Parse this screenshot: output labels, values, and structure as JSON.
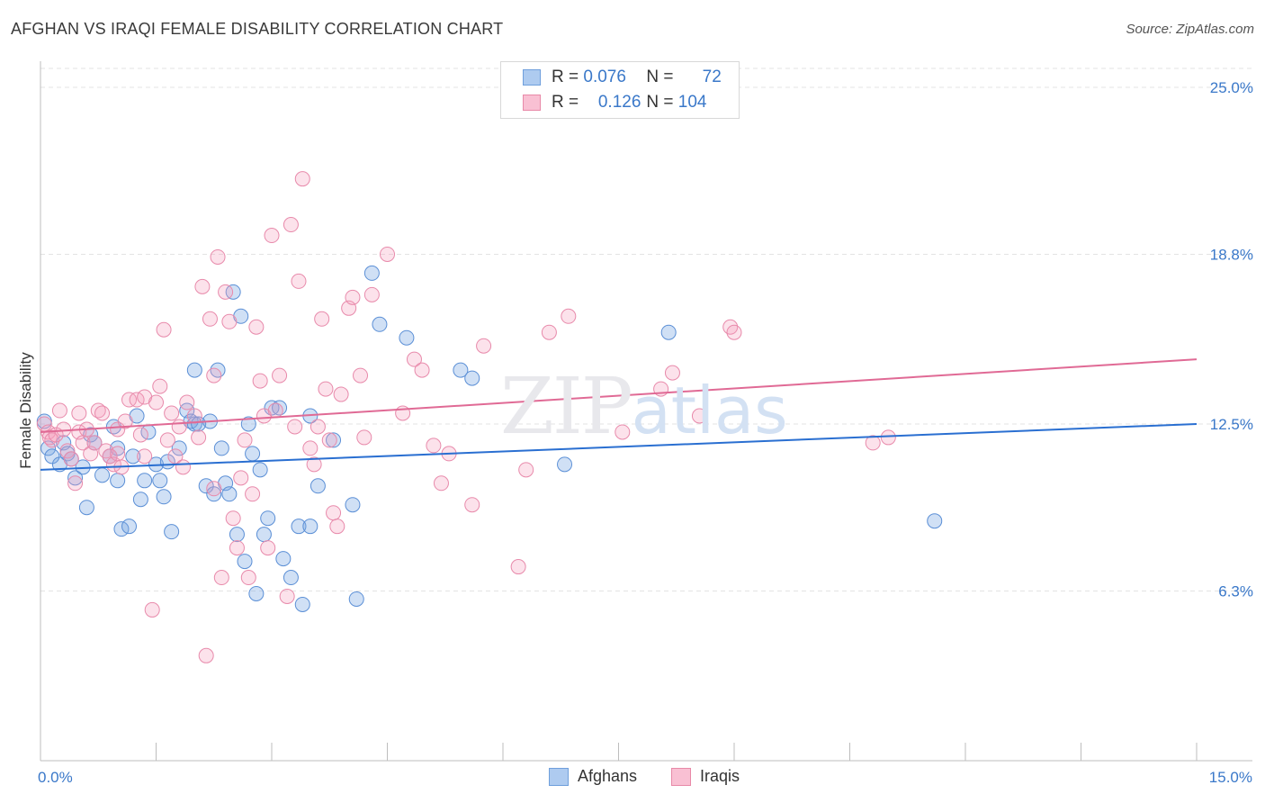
{
  "header": {
    "title": "AFGHAN VS IRAQI FEMALE DISABILITY CORRELATION CHART",
    "source": "Source: ZipAtlas.com"
  },
  "legend": {
    "rows": [
      {
        "r_label": "R =",
        "r_value": "0.076",
        "n_label": "N =",
        "n_value": "72",
        "color": "#aecbf0",
        "border": "#6f9fdc"
      },
      {
        "r_label": "R =",
        "r_value": "0.126",
        "n_label": "N =",
        "n_value": "104",
        "color": "#f9c0d3",
        "border": "#e889a8"
      }
    ]
  },
  "bottom_legend": {
    "afghans": "Afghans",
    "iraqis": "Iraqis"
  },
  "watermark": {
    "zip": "ZIP",
    "atlas": "atlas"
  },
  "colors": {
    "afghan_fill": "rgba(120,167,226,0.35)",
    "afghan_stroke": "#5b8fd6",
    "iraqi_fill": "rgba(244,160,190,0.30)",
    "iraqi_stroke": "#e88aab",
    "afghan_line": "#2a6fd1",
    "iraqi_line": "#e06a95",
    "tick_label": "#3a78c9"
  },
  "chart_data": {
    "type": "scatter",
    "title": "AFGHAN VS IRAQI FEMALE DISABILITY CORRELATION CHART",
    "xlabel": "",
    "ylabel": "Female Disability",
    "xlim": [
      0,
      15
    ],
    "ylim": [
      0,
      25.7
    ],
    "x_tick_labels": [
      {
        "value": 0,
        "label": "0.0%"
      },
      {
        "value": 15,
        "label": "15.0%"
      }
    ],
    "y_tick_labels": [
      {
        "value": 6.3,
        "label": "6.3%"
      },
      {
        "value": 12.5,
        "label": "12.5%"
      },
      {
        "value": 18.8,
        "label": "18.8%"
      },
      {
        "value": 25.0,
        "label": "25.0%"
      }
    ],
    "grid": true,
    "series": [
      {
        "name": "Afghans",
        "trend": {
          "x": [
            0,
            15
          ],
          "y": [
            10.8,
            12.5
          ]
        },
        "points": [
          [
            0.05,
            12.6
          ],
          [
            0.1,
            11.6
          ],
          [
            0.15,
            11.3
          ],
          [
            0.25,
            11.0
          ],
          [
            0.3,
            11.8
          ],
          [
            0.35,
            11.4
          ],
          [
            0.4,
            11.2
          ],
          [
            0.45,
            10.5
          ],
          [
            0.55,
            10.9
          ],
          [
            0.6,
            9.4
          ],
          [
            0.65,
            12.1
          ],
          [
            0.7,
            11.8
          ],
          [
            0.8,
            10.6
          ],
          [
            0.9,
            11.3
          ],
          [
            0.95,
            12.4
          ],
          [
            1.0,
            11.6
          ],
          [
            1.0,
            10.4
          ],
          [
            1.05,
            8.6
          ],
          [
            1.15,
            8.7
          ],
          [
            1.2,
            11.3
          ],
          [
            1.25,
            12.8
          ],
          [
            1.3,
            9.7
          ],
          [
            1.35,
            10.4
          ],
          [
            1.4,
            12.2
          ],
          [
            1.5,
            11.0
          ],
          [
            1.55,
            10.4
          ],
          [
            1.6,
            9.8
          ],
          [
            1.65,
            11.1
          ],
          [
            1.7,
            8.5
          ],
          [
            1.8,
            11.6
          ],
          [
            1.9,
            13.0
          ],
          [
            1.95,
            12.6
          ],
          [
            2.0,
            12.5
          ],
          [
            2.0,
            14.5
          ],
          [
            2.05,
            12.5
          ],
          [
            2.15,
            10.2
          ],
          [
            2.2,
            12.6
          ],
          [
            2.25,
            9.9
          ],
          [
            2.3,
            14.5
          ],
          [
            2.35,
            11.6
          ],
          [
            2.4,
            10.3
          ],
          [
            2.45,
            9.9
          ],
          [
            2.5,
            17.4
          ],
          [
            2.55,
            8.4
          ],
          [
            2.6,
            16.5
          ],
          [
            2.65,
            7.4
          ],
          [
            2.7,
            12.5
          ],
          [
            2.75,
            11.4
          ],
          [
            2.8,
            6.2
          ],
          [
            2.85,
            10.8
          ],
          [
            2.9,
            8.4
          ],
          [
            2.95,
            9.0
          ],
          [
            3.0,
            13.1
          ],
          [
            3.1,
            13.1
          ],
          [
            3.15,
            7.5
          ],
          [
            3.25,
            6.8
          ],
          [
            3.35,
            8.7
          ],
          [
            3.4,
            5.8
          ],
          [
            3.5,
            12.8
          ],
          [
            3.5,
            8.7
          ],
          [
            3.6,
            10.2
          ],
          [
            3.8,
            11.9
          ],
          [
            4.05,
            9.5
          ],
          [
            4.1,
            6.0
          ],
          [
            4.3,
            18.1
          ],
          [
            4.4,
            16.2
          ],
          [
            4.75,
            15.7
          ],
          [
            5.45,
            14.5
          ],
          [
            5.6,
            14.2
          ],
          [
            6.8,
            11.0
          ],
          [
            8.15,
            15.9
          ],
          [
            11.6,
            8.9
          ]
        ]
      },
      {
        "name": "Iraqis",
        "trend": {
          "x": [
            0,
            15
          ],
          "y": [
            12.2,
            14.9
          ]
        },
        "points": [
          [
            0.05,
            12.5
          ],
          [
            0.1,
            12.2
          ],
          [
            0.12,
            12.0
          ],
          [
            0.15,
            11.9
          ],
          [
            0.2,
            12.1
          ],
          [
            0.25,
            13.0
          ],
          [
            0.3,
            12.3
          ],
          [
            0.35,
            11.5
          ],
          [
            0.4,
            11.2
          ],
          [
            0.45,
            10.3
          ],
          [
            0.5,
            12.9
          ],
          [
            0.5,
            12.2
          ],
          [
            0.55,
            11.8
          ],
          [
            0.6,
            12.3
          ],
          [
            0.65,
            11.4
          ],
          [
            0.7,
            11.8
          ],
          [
            0.75,
            13.0
          ],
          [
            0.8,
            12.9
          ],
          [
            0.85,
            11.5
          ],
          [
            0.9,
            11.3
          ],
          [
            0.95,
            11.0
          ],
          [
            1.0,
            12.3
          ],
          [
            1.0,
            11.4
          ],
          [
            1.05,
            10.9
          ],
          [
            1.1,
            12.6
          ],
          [
            1.15,
            13.4
          ],
          [
            1.25,
            13.4
          ],
          [
            1.3,
            12.1
          ],
          [
            1.35,
            11.3
          ],
          [
            1.35,
            13.5
          ],
          [
            1.45,
            5.6
          ],
          [
            1.5,
            13.3
          ],
          [
            1.55,
            13.9
          ],
          [
            1.6,
            16.0
          ],
          [
            1.65,
            11.9
          ],
          [
            1.7,
            12.9
          ],
          [
            1.75,
            11.3
          ],
          [
            1.8,
            12.4
          ],
          [
            1.85,
            10.9
          ],
          [
            1.9,
            13.3
          ],
          [
            2.0,
            12.8
          ],
          [
            2.05,
            12.0
          ],
          [
            2.1,
            17.6
          ],
          [
            2.15,
            3.9
          ],
          [
            2.2,
            16.4
          ],
          [
            2.25,
            14.3
          ],
          [
            2.25,
            10.1
          ],
          [
            2.3,
            18.7
          ],
          [
            2.35,
            6.8
          ],
          [
            2.4,
            17.4
          ],
          [
            2.45,
            16.3
          ],
          [
            2.5,
            9.0
          ],
          [
            2.55,
            7.9
          ],
          [
            2.6,
            10.5
          ],
          [
            2.65,
            11.9
          ],
          [
            2.7,
            6.8
          ],
          [
            2.75,
            9.9
          ],
          [
            2.8,
            16.1
          ],
          [
            2.85,
            14.1
          ],
          [
            2.9,
            12.8
          ],
          [
            2.95,
            7.9
          ],
          [
            3.0,
            19.5
          ],
          [
            3.05,
            13.0
          ],
          [
            3.1,
            14.3
          ],
          [
            3.2,
            6.1
          ],
          [
            3.25,
            19.9
          ],
          [
            3.3,
            12.4
          ],
          [
            3.35,
            17.8
          ],
          [
            3.4,
            21.6
          ],
          [
            3.5,
            11.6
          ],
          [
            3.55,
            11.0
          ],
          [
            3.6,
            12.4
          ],
          [
            3.65,
            16.4
          ],
          [
            3.7,
            13.8
          ],
          [
            3.75,
            11.9
          ],
          [
            3.8,
            9.2
          ],
          [
            3.85,
            8.7
          ],
          [
            3.9,
            13.6
          ],
          [
            4.0,
            16.8
          ],
          [
            4.05,
            17.2
          ],
          [
            4.15,
            14.3
          ],
          [
            4.2,
            12.0
          ],
          [
            4.3,
            17.3
          ],
          [
            4.5,
            18.8
          ],
          [
            4.7,
            12.9
          ],
          [
            4.85,
            14.9
          ],
          [
            4.95,
            14.5
          ],
          [
            5.1,
            11.7
          ],
          [
            5.2,
            10.3
          ],
          [
            5.3,
            11.4
          ],
          [
            5.6,
            9.5
          ],
          [
            5.75,
            15.4
          ],
          [
            6.2,
            7.2
          ],
          [
            6.3,
            10.8
          ],
          [
            6.6,
            15.9
          ],
          [
            6.85,
            16.5
          ],
          [
            7.55,
            12.2
          ],
          [
            8.05,
            13.8
          ],
          [
            8.2,
            14.4
          ],
          [
            8.55,
            12.8
          ],
          [
            8.95,
            16.1
          ],
          [
            9.0,
            15.9
          ],
          [
            10.8,
            11.8
          ],
          [
            11.0,
            12.0
          ]
        ]
      }
    ]
  }
}
